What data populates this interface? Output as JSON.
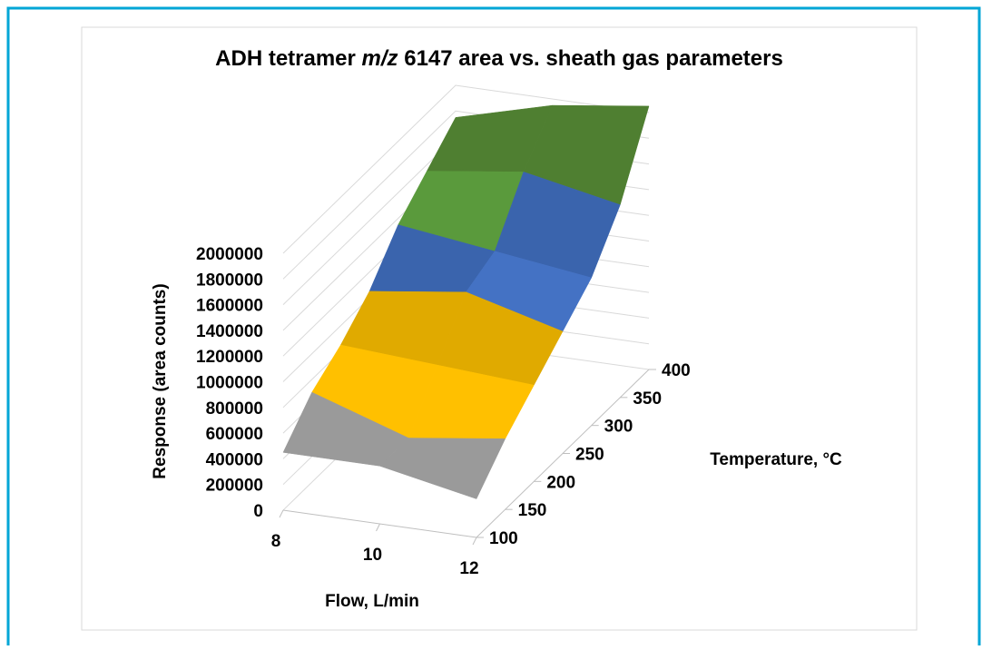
{
  "chart_data": {
    "type": "surface",
    "title": [
      "ADH tetramer ",
      "m/z",
      " 6147 area vs. sheath gas parameters"
    ],
    "x_label": "Flow, L/min",
    "y_label": "Temperature, °C",
    "z_label": "Response (area counts)",
    "x": [
      8,
      10,
      12
    ],
    "y": [
      100,
      150,
      200,
      250,
      300,
      350,
      400
    ],
    "values": [
      [
        450000,
        450000,
        300000
      ],
      [
        700000,
        450000,
        550000
      ],
      [
        850000,
        800000,
        750000
      ],
      [
        1050000,
        1150000,
        950000
      ],
      [
        1350000,
        1250000,
        1150000
      ],
      [
        1550000,
        1650000,
        1500000
      ],
      [
        1750000,
        1950000,
        2050000
      ]
    ],
    "xlim": [
      8,
      12
    ],
    "xticks": [
      8,
      10,
      12
    ],
    "ylim": [
      100,
      400
    ],
    "yticks": [
      100,
      150,
      200,
      250,
      300,
      350,
      400
    ],
    "zlim": [
      0,
      2000000
    ],
    "zticks": [
      0,
      200000,
      400000,
      600000,
      800000,
      1000000,
      1200000,
      1400000,
      1600000,
      1800000,
      2000000
    ],
    "band_colors": [
      "#8c8c8c",
      "#a6a6a6",
      "#9a9a9a",
      "#ffc000",
      "#e0aa00",
      "#4472c4",
      "#3a64ad",
      "#5a9a3c",
      "#4f7f31",
      "#1f4e79",
      "#843c0c",
      "#505050"
    ],
    "grid": true
  }
}
